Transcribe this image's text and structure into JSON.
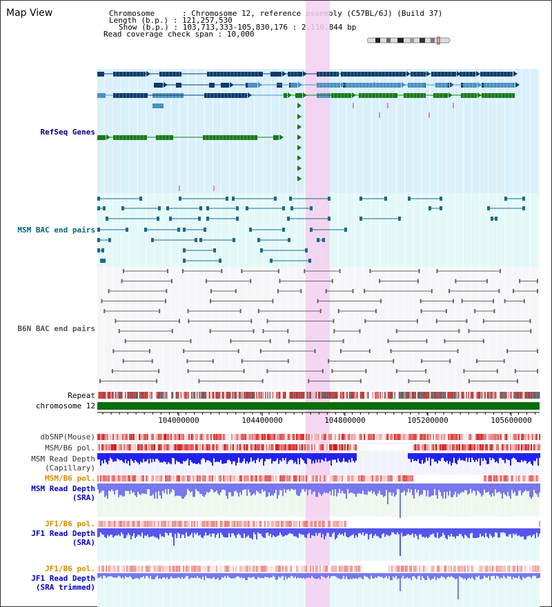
{
  "title": "Map View",
  "info": {
    "chromosome": "Chromosome      : Chromosome 12, reference assembly (C57BL/6J) (Build 37)",
    "length": "Length (b.p.) : 121,257,530",
    "show": "Show (b.p.) : 103,713,333-105,830,176 : 2,116,844 bp",
    "coverage": "Read coverage check span : 10,000"
  },
  "tracks": {
    "refseq": "RefSeq Genes",
    "msm_bac": "MSM BAC end pairs",
    "b6n_bac": "B6N BAC end pairs",
    "repeat": "Repeat",
    "chromosome": "chromosome 12",
    "dbsnp": "dbSNP(Mouse)",
    "msm_b6_pol_1": "MSM/B6 pol.",
    "msm_depth_cap_1": "MSM Read Depth",
    "msm_depth_cap_2": "(Capillary)",
    "msm_b6_pol_2": "MSM/B6 pol.",
    "msm_depth_sra_1": "MSM Read Depth",
    "msm_depth_sra_2": "(SRA)",
    "jf1_b6_pol_1": "JF1/B6 pol.",
    "jf1_depth_1": "JF1 Read Depth",
    "jf1_depth_2": "(SRA)",
    "jf1_b6_pol_2": "JF1/B6 pol.",
    "jf1_trim_1": "JF1 Read Depth",
    "jf1_trim_2": "(SRA trimmed)"
  },
  "axis": {
    "ticks": [
      "104000000",
      "104400000",
      "104800000",
      "105200000",
      "105600000"
    ]
  },
  "colors": {
    "refseq_bg": "#daf0fa",
    "msm_bg": "#e4f8f8",
    "b6n_bg": "#f6f6fa",
    "highlight": "#f5d0f0",
    "gene_navy": "#0b3a6b",
    "gene_steel": "#4a90c0",
    "gene_green": "#1a7a1a",
    "chromosome": "#0a6e0a",
    "depth_blue": "#2222ee",
    "depth_light": "#7777ee"
  }
}
